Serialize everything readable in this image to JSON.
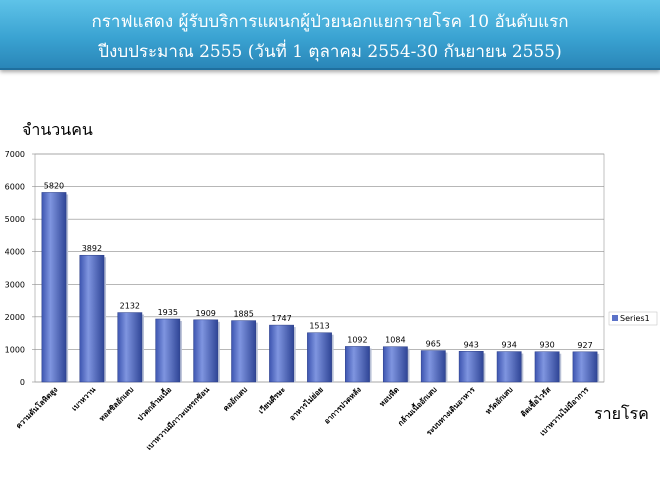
{
  "header": {
    "title_line_1": "กราฟแสดง ผู้รับบริการแผนกผู้ป่วยนอกแยกรายโรค 10 อันดับแรก",
    "title_line_2": "ปีงบประมาณ 2555 (วันที่ 1 ตุลาคม 2554-30 กันยายน 2555)"
  },
  "chart_data": {
    "type": "bar",
    "title": "กราฟแสดง ผู้รับบริการแผนกผู้ป่วยนอกแยกรายโรค 10 อันดับแรก ปีงบประมาณ 2555 (วันที่ 1 ตุลาคม 2554-30 กันยายน 2555)",
    "ylabel": "จำนวนคน",
    "xlabel": "รายโรค",
    "ylim": [
      0,
      7000
    ],
    "yticks": [
      0,
      1000,
      2000,
      3000,
      4000,
      5000,
      6000,
      7000
    ],
    "grid": true,
    "legend_position": "right",
    "bar_color": "#5b72c8",
    "categories": [
      "ความดันโลหิตสูง",
      "เบาหวาน",
      "ทอลซิลอักเสบ",
      "ปวดกล้ามเนื้อ",
      "เบาหวานมีภาวะแทรกซ้อน",
      "คออักเสบ",
      "เวียนศีรษะ",
      "อาหารไม่ย่อย",
      "อาการปวดหลัง",
      "หอบหืด",
      "กล้ามเนื้ออักเสบ",
      "ระบบทางเดินอาหาร",
      "หวัดอักเสบ",
      "ติดเชื้อไวรัส",
      "เบาหวานไม่มีอาการ"
    ],
    "series": [
      {
        "name": "Series1",
        "values": [
          5820,
          3892,
          2132,
          1935,
          1909,
          1885,
          1747,
          1513,
          1092,
          1084,
          965,
          943,
          934,
          930,
          927
        ]
      }
    ]
  }
}
